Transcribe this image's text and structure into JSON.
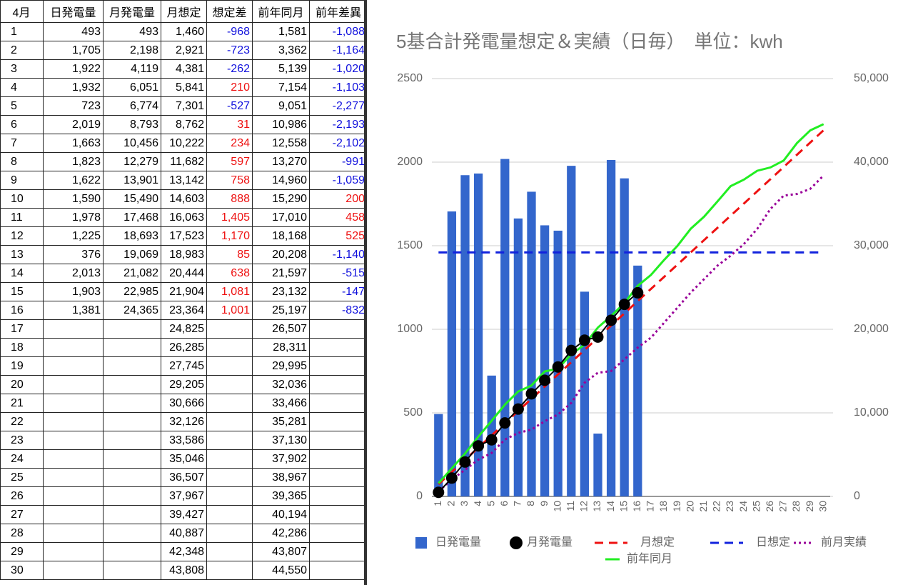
{
  "table": {
    "header": [
      "4月",
      "日発電量",
      "月発電量",
      "月想定",
      "想定差",
      "前年同月",
      "前年差異"
    ],
    "rows": [
      [
        "1",
        "493",
        "493",
        "1,460",
        "-968",
        "1,581",
        "-1,088"
      ],
      [
        "2",
        "1,705",
        "2,198",
        "2,921",
        "-723",
        "3,362",
        "-1,164"
      ],
      [
        "3",
        "1,922",
        "4,119",
        "4,381",
        "-262",
        "5,139",
        "-1,020"
      ],
      [
        "4",
        "1,932",
        "6,051",
        "5,841",
        "210",
        "7,154",
        "-1,103"
      ],
      [
        "5",
        "723",
        "6,774",
        "7,301",
        "-527",
        "9,051",
        "-2,277"
      ],
      [
        "6",
        "2,019",
        "8,793",
        "8,762",
        "31",
        "10,986",
        "-2,193"
      ],
      [
        "7",
        "1,663",
        "10,456",
        "10,222",
        "234",
        "12,558",
        "-2,102"
      ],
      [
        "8",
        "1,823",
        "12,279",
        "11,682",
        "597",
        "13,270",
        "-991"
      ],
      [
        "9",
        "1,622",
        "13,901",
        "13,142",
        "758",
        "14,960",
        "-1,059"
      ],
      [
        "10",
        "1,590",
        "15,490",
        "14,603",
        "888",
        "15,290",
        "200"
      ],
      [
        "11",
        "1,978",
        "17,468",
        "16,063",
        "1,405",
        "17,010",
        "458"
      ],
      [
        "12",
        "1,225",
        "18,693",
        "17,523",
        "1,170",
        "18,168",
        "525"
      ],
      [
        "13",
        "376",
        "19,069",
        "18,983",
        "85",
        "20,208",
        "-1,140"
      ],
      [
        "14",
        "2,013",
        "21,082",
        "20,444",
        "638",
        "21,597",
        "-515"
      ],
      [
        "15",
        "1,903",
        "22,985",
        "21,904",
        "1,081",
        "23,132",
        "-147"
      ],
      [
        "16",
        "1,381",
        "24,365",
        "23,364",
        "1,001",
        "25,197",
        "-832"
      ],
      [
        "17",
        null,
        null,
        "24,825",
        null,
        "26,507",
        null
      ],
      [
        "18",
        null,
        null,
        "26,285",
        null,
        "28,311",
        null
      ],
      [
        "19",
        null,
        null,
        "27,745",
        null,
        "29,995",
        null
      ],
      [
        "20",
        null,
        null,
        "29,205",
        null,
        "32,036",
        null
      ],
      [
        "21",
        null,
        null,
        "30,666",
        null,
        "33,466",
        null
      ],
      [
        "22",
        null,
        null,
        "32,126",
        null,
        "35,281",
        null
      ],
      [
        "23",
        null,
        null,
        "33,586",
        null,
        "37,130",
        null
      ],
      [
        "24",
        null,
        null,
        "35,046",
        null,
        "37,902",
        null
      ],
      [
        "25",
        null,
        null,
        "36,507",
        null,
        "38,967",
        null
      ],
      [
        "26",
        null,
        null,
        "37,967",
        null,
        "39,365",
        null
      ],
      [
        "27",
        null,
        null,
        "39,427",
        null,
        "40,194",
        null
      ],
      [
        "28",
        null,
        null,
        "40,887",
        null,
        "42,286",
        null
      ],
      [
        "29",
        null,
        null,
        "42,348",
        null,
        "43,807",
        null
      ],
      [
        "30",
        null,
        null,
        "43,808",
        null,
        "44,550",
        null
      ]
    ]
  },
  "chart_data": {
    "type": "combo",
    "title": "5基合計発電量想定＆実績（日毎）　単位：kwh",
    "categories": [
      "1",
      "2",
      "3",
      "4",
      "5",
      "6",
      "7",
      "8",
      "9",
      "10",
      "11",
      "12",
      "13",
      "14",
      "15",
      "16",
      "17",
      "18",
      "19",
      "20",
      "21",
      "22",
      "23",
      "24",
      "25",
      "26",
      "27",
      "28",
      "29",
      "30"
    ],
    "ylim": [
      0,
      2500
    ],
    "yticks": [
      0,
      500,
      1000,
      1500,
      2000,
      2500
    ],
    "y2lim": [
      0,
      50000
    ],
    "y2ticks": [
      0,
      {
        "value": 10000,
        "label": "10,000"
      },
      {
        "value": 20000,
        "label": "20,000"
      },
      {
        "value": 30000,
        "label": "30,000"
      },
      {
        "value": 40000,
        "label": "40,000"
      },
      {
        "value": 50000,
        "label": "50,000"
      }
    ],
    "grid": true,
    "series": [
      {
        "name": "日発電量",
        "kind": "bar",
        "color": "#3366cc",
        "axis": "y",
        "values": [
          493,
          1705,
          1922,
          1932,
          723,
          2019,
          1663,
          1823,
          1622,
          1590,
          1978,
          1225,
          376,
          2013,
          1903,
          1381,
          null,
          null,
          null,
          null,
          null,
          null,
          null,
          null,
          null,
          null,
          null,
          null,
          null,
          null
        ]
      },
      {
        "name": "月発電量",
        "kind": "line",
        "marker": "circle",
        "color": "#000000",
        "axis": "y2",
        "values": [
          493,
          2198,
          4119,
          6051,
          6774,
          8793,
          10456,
          12279,
          13901,
          15490,
          17468,
          18693,
          19069,
          21082,
          22985,
          24365,
          null,
          null,
          null,
          null,
          null,
          null,
          null,
          null,
          null,
          null,
          null,
          null,
          null,
          null
        ]
      },
      {
        "name": "月想定",
        "kind": "line",
        "dash": "dashed",
        "color": "#ee1111",
        "axis": "y2",
        "values": [
          1460,
          2921,
          4381,
          5841,
          7301,
          8762,
          10222,
          11682,
          13142,
          14603,
          16063,
          17523,
          18983,
          20444,
          21904,
          23364,
          24825,
          26285,
          27745,
          29205,
          30666,
          32126,
          33586,
          35046,
          36507,
          37967,
          39427,
          40887,
          42348,
          43808
        ]
      },
      {
        "name": "日想定",
        "kind": "line",
        "dash": "dashed",
        "color": "#1122dd",
        "axis": "y",
        "values": [
          1460,
          1460,
          1460,
          1460,
          1460,
          1460,
          1460,
          1460,
          1460,
          1460,
          1460,
          1460,
          1460,
          1460,
          1460,
          1460,
          1460,
          1460,
          1460,
          1460,
          1460,
          1460,
          1460,
          1460,
          1460,
          1460,
          1460,
          1460,
          1460,
          1460
        ]
      },
      {
        "name": "前月実績",
        "kind": "line",
        "dash": "dotted",
        "color": "#990099",
        "axis": "y2",
        "values": [
          600,
          2000,
          3200,
          4400,
          5200,
          6800,
          7600,
          8000,
          9000,
          9800,
          11200,
          13600,
          14800,
          15000,
          16400,
          17800,
          19000,
          20800,
          22600,
          24400,
          26000,
          27600,
          28800,
          30200,
          32000,
          34400,
          36000,
          36200,
          36800,
          38400
        ]
      },
      {
        "name": "前年同月",
        "kind": "line",
        "color": "#22ee22",
        "axis": "y2",
        "values": [
          1581,
          3362,
          5139,
          7154,
          9051,
          10986,
          12558,
          13270,
          14960,
          15290,
          17010,
          18168,
          20208,
          21597,
          23132,
          25197,
          26507,
          28311,
          29995,
          32036,
          33466,
          35281,
          37130,
          37902,
          38967,
          39365,
          40194,
          42286,
          43807,
          44550
        ]
      }
    ]
  }
}
